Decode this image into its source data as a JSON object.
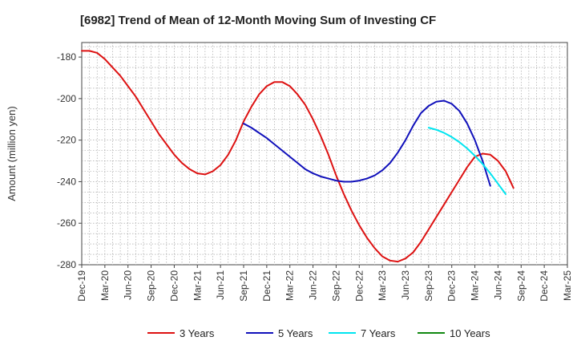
{
  "chart_data": {
    "type": "line",
    "title": "[6982]  Trend of Mean of 12-Month Moving Sum of Investing CF",
    "xlabel": "",
    "ylabel": "Amount (million yen)",
    "ylim": [
      -280,
      -173
    ],
    "yticks": [
      -180,
      -200,
      -220,
      -240,
      -260,
      -280
    ],
    "xticks": [
      "Dec-19",
      "Mar-20",
      "Jun-20",
      "Sep-20",
      "Dec-20",
      "Mar-21",
      "Jun-21",
      "Sep-21",
      "Dec-21",
      "Mar-22",
      "Jun-22",
      "Sep-22",
      "Dec-22",
      "Mar-23",
      "Jun-23",
      "Sep-23",
      "Dec-23",
      "Mar-24",
      "Jun-24",
      "Sep-24",
      "Dec-24",
      "Mar-25"
    ],
    "grid": true,
    "legend_position": "bottom",
    "series": [
      {
        "name": "3 Years",
        "color": "#dd1111",
        "start_index": 0,
        "values": [
          -177,
          -177,
          -178,
          -181,
          -185,
          -189,
          -194,
          -199,
          -205,
          -211,
          -217,
          -222,
          -227,
          -231,
          -234,
          -236,
          -236.5,
          -235,
          -232,
          -227,
          -220,
          -211,
          -204,
          -198,
          -194,
          -192,
          -192,
          -194,
          -198,
          -203,
          -210,
          -218,
          -227,
          -237,
          -246,
          -254,
          -261,
          -267,
          -272,
          -276,
          -278,
          -278.5,
          -277,
          -274,
          -269,
          -263,
          -257,
          -251,
          -245,
          -239,
          -233,
          -228,
          -226.5,
          -227,
          -230,
          -235,
          -243
        ]
      },
      {
        "name": "5 Years",
        "color": "#1111bb",
        "start_index": 21,
        "values": [
          -212,
          -214,
          -216.5,
          -219,
          -222,
          -225,
          -228,
          -231,
          -234,
          -236,
          -237.5,
          -238.5,
          -239.5,
          -240,
          -240,
          -239.5,
          -238.5,
          -237,
          -234.5,
          -231,
          -226,
          -220,
          -213,
          -207,
          -203.5,
          -201.5,
          -201,
          -202.5,
          -206,
          -212,
          -220,
          -230,
          -242
        ]
      },
      {
        "name": "7 Years",
        "color": "#00e5f0",
        "start_index": 45,
        "values": [
          -214,
          -215,
          -216.5,
          -218.5,
          -221,
          -224,
          -227.5,
          -231.5,
          -236,
          -241,
          -246
        ]
      },
      {
        "name": "10 Years",
        "color": "#118811",
        "start_index": 0,
        "values": []
      }
    ]
  }
}
